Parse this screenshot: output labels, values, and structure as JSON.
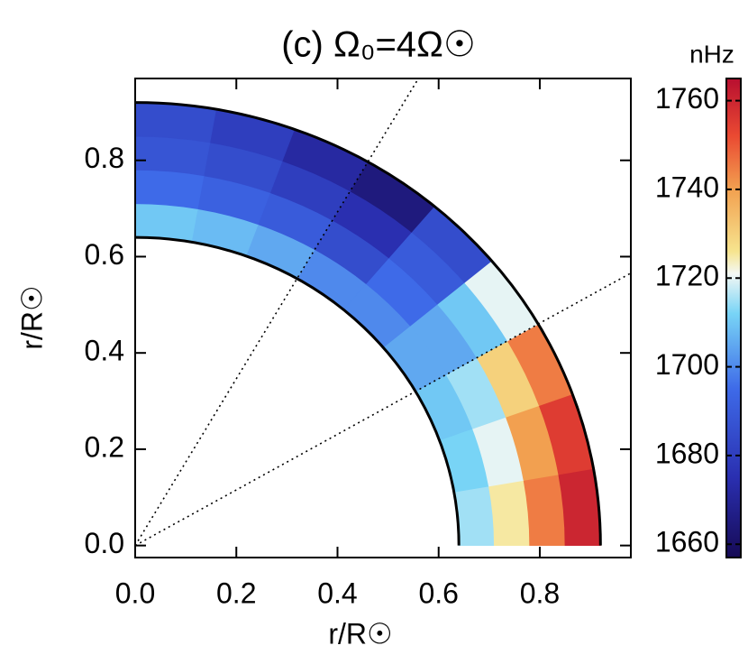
{
  "chart_data": {
    "type": "meridional",
    "title": "(c) Ω₀=4Ω☉",
    "xlabel": "r/R☉",
    "ylabel": "r/R☉",
    "colorbar_label": "nHz",
    "xlim": [
      0,
      0.98
    ],
    "ylim": [
      -0.025,
      0.97
    ],
    "xticks": [
      {
        "value": 0,
        "label": "0.0"
      },
      0.2,
      0.4,
      0.6,
      0.8
    ],
    "yticks": [
      {
        "value": 0,
        "label": "0.0"
      },
      0.2,
      0.4,
      0.6,
      0.8
    ],
    "zlim": [
      1657,
      1765
    ],
    "zticks": [
      1660,
      1680,
      1700,
      1720,
      1740,
      1760
    ],
    "colorscale": [
      {
        "value": 1657,
        "color": "#160a55"
      },
      {
        "value": 1675,
        "color": "#2a2fb0"
      },
      {
        "value": 1695,
        "color": "#3e6ae8"
      },
      {
        "value": 1712,
        "color": "#78d4f6"
      },
      {
        "value": 1721,
        "color": "#f4f8f4"
      },
      {
        "value": 1726,
        "color": "#f6e48e"
      },
      {
        "value": 1740,
        "color": "#f2a050"
      },
      {
        "value": 1752,
        "color": "#ea4a32"
      },
      {
        "value": 1765,
        "color": "#b80f30"
      }
    ],
    "guide_latitudes": [
      30,
      60
    ],
    "r_edges": [
      0.64,
      0.71,
      0.78,
      0.85,
      0.92
    ],
    "lat_edges": [
      0,
      10,
      20,
      30,
      40,
      50,
      60,
      70,
      80,
      90
    ],
    "values": [
      [
        1715,
        1725,
        1745,
        1760
      ],
      [
        1712,
        1720,
        1740,
        1755
      ],
      [
        1710,
        1715,
        1730,
        1745
      ],
      [
        1705,
        1705,
        1710,
        1720
      ],
      [
        1700,
        1695,
        1690,
        1685
      ],
      [
        1700,
        1685,
        1675,
        1665
      ],
      [
        1705,
        1690,
        1680,
        1672
      ],
      [
        1708,
        1692,
        1685,
        1680
      ],
      [
        1710,
        1695,
        1688,
        1685
      ]
    ]
  }
}
